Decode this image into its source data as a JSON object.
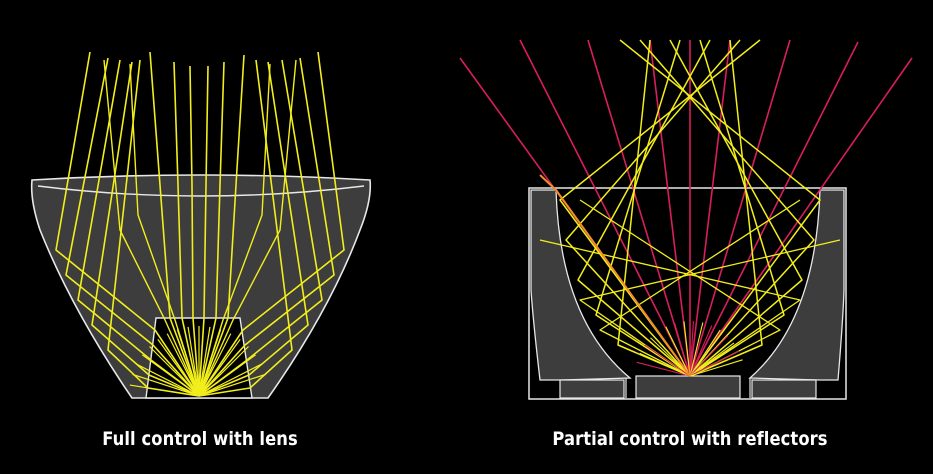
{
  "captions": {
    "left": "Full control with lens",
    "right": "Partial control with reflectors"
  },
  "colors": {
    "background": "#000000",
    "optic_body": "#3d3d3d",
    "outline": "#e8e8e8",
    "ray_yellow": "#f2ee1c",
    "ray_red": "#d81e5b"
  }
}
